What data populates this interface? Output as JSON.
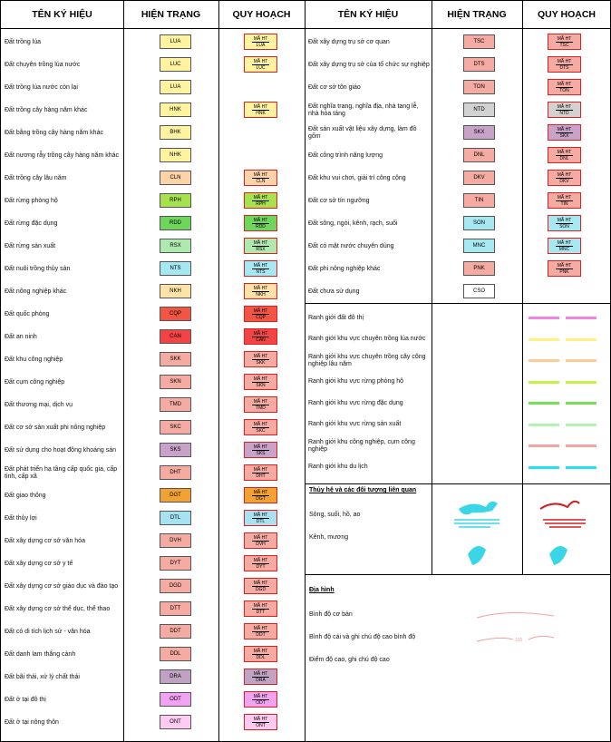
{
  "header": {
    "name": "TÊN KÝ HIỆU",
    "current": "HIỆN TRẠNG",
    "plan": "QUY HOẠCH"
  },
  "plan_code_label": "MÃ HT",
  "land_use_left": [
    {
      "name": "Đất trồng lúa",
      "code": "LUA",
      "color": "#fff3a0",
      "plan": true
    },
    {
      "name": "Đất chuyên trồng lúa nước",
      "code": "LUC",
      "color": "#fff3a0",
      "plan": true
    },
    {
      "name": "Đất trồng lúa nước còn lại",
      "code": "LUA",
      "color": "#fff3a0",
      "plan": false
    },
    {
      "name": "Đất trồng cây hàng năm khác",
      "code": "HNK",
      "color": "#fff3a0",
      "plan": true
    },
    {
      "name": "Đất bằng trồng cây hàng năm khác",
      "code": "BHK",
      "color": "#fff3a0",
      "plan": false
    },
    {
      "name": "Đất nương rẫy trồng cây hàng năm khác",
      "code": "NHK",
      "color": "#fff3a0",
      "plan": false
    },
    {
      "name": "Đất trồng cây lâu năm",
      "code": "CLN",
      "color": "#ffd3a8",
      "plan": true
    },
    {
      "name": "Đất rừng phòng hộ",
      "code": "RPH",
      "color": "#a6e24e",
      "plan": true
    },
    {
      "name": "Đất rừng đặc dụng",
      "code": "RDD",
      "color": "#6fd65c",
      "plan": true
    },
    {
      "name": "Đất rừng sản xuất",
      "code": "RSX",
      "color": "#aeeaae",
      "plan": true
    },
    {
      "name": "Đất nuôi trồng thủy sản",
      "code": "NTS",
      "color": "#a6e8f2",
      "plan": true
    },
    {
      "name": "Đất nông nghiệp khác",
      "code": "NKH",
      "color": "#ffe2a6",
      "plan": true
    },
    {
      "name": "Đất quốc phòng",
      "code": "CQP",
      "color": "#f25544",
      "plan": true
    },
    {
      "name": "Đất an ninh",
      "code": "CAN",
      "color": "#f24444",
      "plan": true
    },
    {
      "name": "Đất khu công nghiệp",
      "code": "SKK",
      "color": "#f5aaa2",
      "plan": true
    },
    {
      "name": "Đất cụm công nghiệp",
      "code": "SKN",
      "color": "#f5aaa2",
      "plan": true
    },
    {
      "name": "Đất thương mại, dịch vụ",
      "code": "TMD",
      "color": "#f5aaa2",
      "plan": true
    },
    {
      "name": "Đất cơ sở sản xuất phi nông nghiệp",
      "code": "SKC",
      "color": "#f5aaa2",
      "plan": true
    },
    {
      "name": "Đất sử dụng cho hoạt động khoáng sản",
      "code": "SKS",
      "color": "#c9a2c9",
      "plan": true
    },
    {
      "name": "Đất phát triển hạ tầng cấp quốc gia, cấp tỉnh, cấp xã",
      "code": "DHT",
      "color": "#f5aaa2",
      "plan": true
    },
    {
      "name": "Đất giao thông",
      "code": "DGT",
      "color": "#f2a232",
      "plan": true
    },
    {
      "name": "Đất thủy lợi",
      "code": "DTL",
      "color": "#a6e2f2",
      "plan": true
    },
    {
      "name": "Đất xây dựng cơ sở văn hóa",
      "code": "DVH",
      "color": "#f5aaa2",
      "plan": true
    },
    {
      "name": "Đất xây dựng cơ sở y tế",
      "code": "DYT",
      "color": "#f5aaa2",
      "plan": true
    },
    {
      "name": "Đất xây dựng cơ sở giáo dục và đào tạo",
      "code": "DGD",
      "color": "#f5aaa2",
      "plan": true
    },
    {
      "name": "Đất xây dựng cơ sở thể dục, thể thao",
      "code": "DTT",
      "color": "#f5aaa2",
      "plan": true
    },
    {
      "name": "Đất có di tích lịch sử - văn hóa",
      "code": "DDT",
      "color": "#f5aaa2",
      "plan": true
    },
    {
      "name": "Đất danh lam thắng cảnh",
      "code": "DDL",
      "color": "#f5aaa2",
      "plan": true
    },
    {
      "name": "Đất bãi thải, xử lý chất thải",
      "code": "DRA",
      "color": "#c2a2c2",
      "plan": true
    },
    {
      "name": "Đất ở tại đô thị",
      "code": "ODT",
      "color": "#f2a2f2",
      "plan": true
    },
    {
      "name": "Đất ở tại nông thôn",
      "code": "ONT",
      "color": "#ffcaf2",
      "plan": true
    }
  ],
  "land_use_right": [
    {
      "name": "Đất xây dựng trụ sở cơ quan",
      "code": "TSC",
      "color": "#f5aaa2",
      "plan": true
    },
    {
      "name": "Đất xây dựng trụ sở của tổ chức sự nghiệp",
      "code": "DTS",
      "color": "#f5aaa2",
      "plan": true
    },
    {
      "name": "Đất cơ sở tôn giáo",
      "code": "TON",
      "color": "#f5aaa2",
      "plan": true
    },
    {
      "name": "Đất nghĩa trang, nghĩa địa, nhà tang lễ, nhà hỏa táng",
      "code": "NTD",
      "color": "#d2d2d2",
      "plan": true
    },
    {
      "name": "Đất sản xuất vật liệu xây dựng, làm đồ gốm",
      "code": "SKX",
      "color": "#c9a2c9",
      "plan": true
    },
    {
      "name": "Đất công trình năng lượng",
      "code": "DNL",
      "color": "#f5aaa2",
      "plan": true
    },
    {
      "name": "Đất khu vui chơi, giải trí công cộng",
      "code": "DKV",
      "color": "#f5aaa2",
      "plan": true
    },
    {
      "name": "Đất cơ sở tín ngưỡng",
      "code": "TIN",
      "color": "#f5aaa2",
      "plan": true
    },
    {
      "name": "Đất sông, ngòi, kênh, rạch, suối",
      "code": "SON",
      "color": "#a6e8f2",
      "plan": true
    },
    {
      "name": "Đất có mặt nước chuyên dùng",
      "code": "MNC",
      "color": "#a6e8f2",
      "plan": true
    },
    {
      "name": "Đất phi nông nghiệp khác",
      "code": "PNK",
      "color": "#f5aaa2",
      "plan": true
    },
    {
      "name": "Đất chưa sử dụng",
      "code": "CSO",
      "color": "#ffffff",
      "plan": false
    }
  ],
  "boundaries": [
    {
      "name": "Ranh giới đất đô thị",
      "color": "#f284e2"
    },
    {
      "name": "Ranh giới khu vực chuyên trồng lúa nước",
      "color": "#fff284"
    },
    {
      "name": "Ranh giới khu vực chuyên trồng cây công nghiệp lâu năm",
      "color": "#ffcb94"
    },
    {
      "name": "Ranh giới khu vực rừng phòng hộ",
      "color": "#c4f244"
    },
    {
      "name": "Ranh giới khu vực rừng đặc dụng",
      "color": "#74e254"
    },
    {
      "name": "Ranh giới khu vực rừng sản xuất",
      "color": "#b4f2b4"
    },
    {
      "name": "Ranh giới khu công nghiệp, cụm công nghiệp",
      "color": "#f5a4a4"
    },
    {
      "name": "Ranh giới khu du lịch",
      "color": "#24e2f2"
    }
  ],
  "hydro": {
    "title": "Thủy hệ và các đối tượng liên quan",
    "items": [
      "Sông, suối, hồ, ao",
      "Kênh, mương"
    ]
  },
  "terrain": {
    "title": "Địa hình",
    "items": [
      "Bình độ cơ bản",
      "Bình độ cái và ghi chú độ cao bình độ",
      "Điểm độ cao, ghi chú độ cao"
    ],
    "contour_label": "100"
  }
}
